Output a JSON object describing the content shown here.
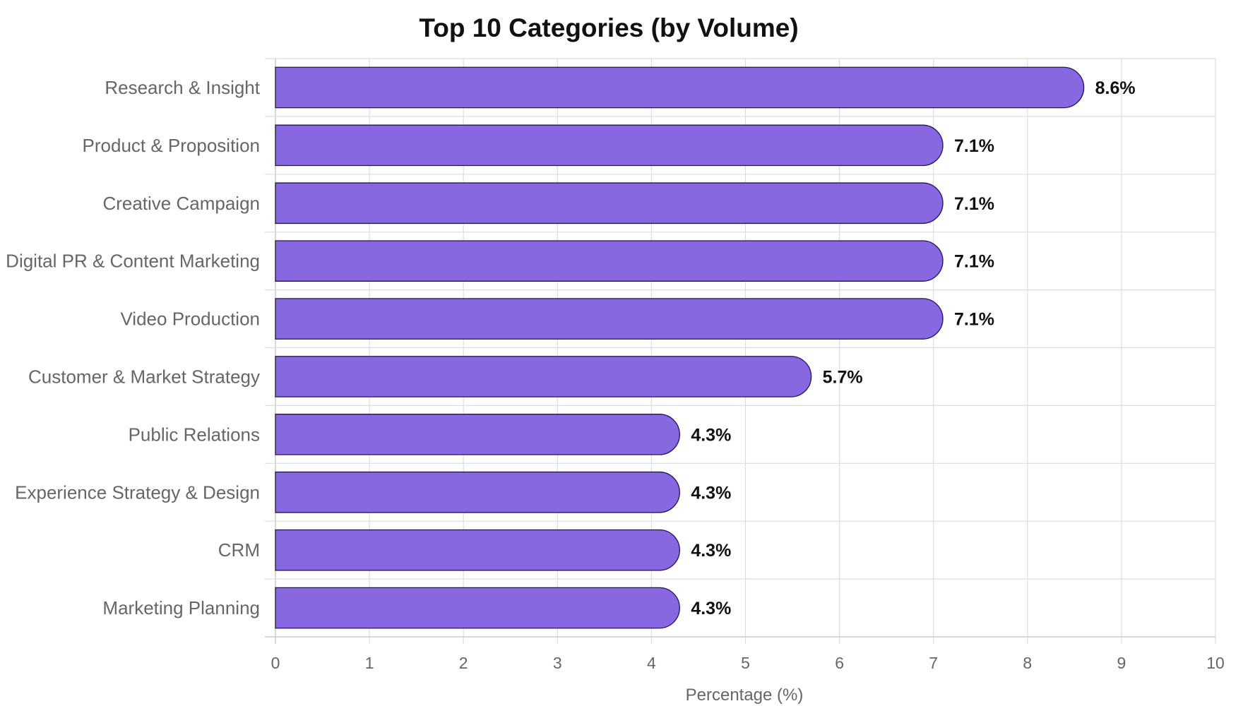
{
  "chart_data": {
    "type": "bar",
    "orientation": "horizontal",
    "title": "Top 10 Categories (by Volume)",
    "xlabel": "Percentage (%)",
    "ylabel": "",
    "xlim": [
      0,
      10
    ],
    "x_ticks": [
      "0",
      "1",
      "2",
      "3",
      "4",
      "5",
      "6",
      "7",
      "8",
      "9",
      "10"
    ],
    "grid": true,
    "bar_color": "#8768e0",
    "bar_edge_color": "#1e1a4a",
    "categories": [
      "Research & Insight",
      "Product & Proposition",
      "Creative Campaign",
      "Digital PR & Content Marketing",
      "Video Production",
      "Customer & Market Strategy",
      "Public Relations",
      "Experience Strategy & Design",
      "CRM",
      "Marketing Planning"
    ],
    "values": [
      8.6,
      7.1,
      7.1,
      7.1,
      7.1,
      5.7,
      4.3,
      4.3,
      4.3,
      4.3
    ],
    "value_labels": [
      "8.6%",
      "7.1%",
      "7.1%",
      "7.1%",
      "7.1%",
      "5.7%",
      "4.3%",
      "4.3%",
      "4.3%",
      "4.3%"
    ]
  }
}
